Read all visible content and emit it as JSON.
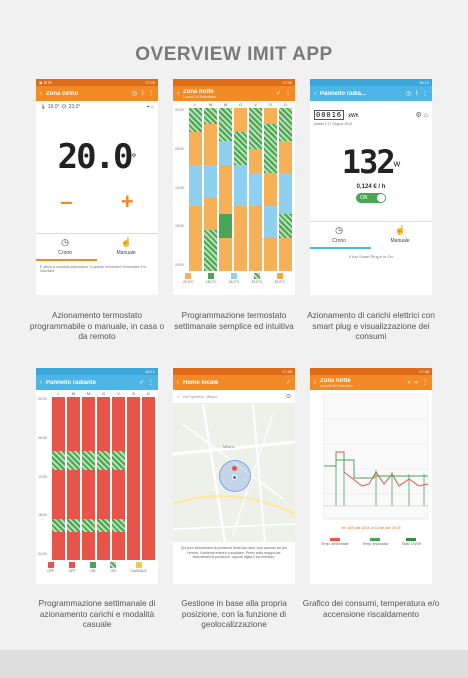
{
  "page_title": "OVERVIEW IMIT APP",
  "phones": {
    "p1": {
      "status_left": "◉ ☰ ✉",
      "status_right": "17:25",
      "title": "Zona cirino",
      "indoor_temp": "19,0°",
      "outdoor_temp": "23,0°",
      "setpoint": "20.0",
      "setpoint_unit": "°",
      "minus": "–",
      "plus": "+",
      "btn_chrono": "Crono",
      "btn_manual": "Manuale",
      "footer": "È attiva la modalità automatica. In questo momento il termostato è in Standard"
    },
    "p2": {
      "status_right": "17:35",
      "title": "Zona notte",
      "subtitle": "Lunedì 16 Settembre",
      "days": [
        "L",
        "M",
        "M",
        "G",
        "V",
        "S",
        "D"
      ],
      "y_ticks": [
        "00:00",
        "06:00",
        "12:00",
        "18:00",
        "24:00"
      ],
      "legend": [
        "20,0°C",
        "18,0°C",
        "16,0°C",
        "22,0°C",
        "20,0°C"
      ]
    },
    "p3": {
      "status_right": "16:12",
      "title": "Pannello radia...",
      "counter": "00016",
      "counter_unit": "kWh",
      "counter_since": "partito il 17 Giugno 2014",
      "power": "132",
      "power_unit": "W",
      "cost": "0,124 € / h",
      "toggle": "ON",
      "btn_chrono": "Crono",
      "btn_manual": "Manuale",
      "footer": "Il tuo Smart Plug è in On"
    },
    "p4": {
      "status_right": "16:12",
      "title": "Pannello radiante",
      "days": [
        "L",
        "M",
        "M",
        "G",
        "V",
        "S",
        "D"
      ],
      "y_ticks": [
        "00:00",
        "06:00",
        "12:00",
        "18:00",
        "24:00"
      ],
      "legend": [
        "OFF",
        "OFF",
        "ON",
        "ON",
        "CASUALE"
      ]
    },
    "p5": {
      "status_right": "17:35",
      "title": "Home locale",
      "search": "Via Spinetta, Milano",
      "map_label": "Milano",
      "footer": "Qui puoi selezionare la posizione della tua casa, così quando sei per l'errore, il sistema entrerà a scaldare. Premi sulla mappa per selezionare la posizione, oppure digita il tuo indirizzo."
    },
    "p6": {
      "status_right": "17:35",
      "title": "Zona notte",
      "subtitle": "Lunedì 16 Settembre",
      "chart_note": "Ieri 16/9 alle 18:00 al 16 set alle 20:25",
      "legend": [
        "Temp. ambientale",
        "Temp. impostata",
        "Stato On/Off"
      ]
    }
  },
  "captions": {
    "c1": "Azionamento termostato programmabile o manuale, in casa o da remoto",
    "c2": "Programmazione termostato settimanale semplice ed intuitiva",
    "c3": "Azionamento di carichi elettrici con smart plug e visualizzazione dei consumi",
    "c4": "Programmazione settimanale di azionamento carichi e modalità casuale",
    "c5": "Gestione in base alla propria posizione, con la funzione di geolocalizzazione",
    "c6": "Grafico dei consumi, temperatura e/o accensione riscaldamento"
  },
  "colors": {
    "orange": "#f28a26",
    "blue": "#4db6e6",
    "green": "#49a657",
    "red": "#e8534a",
    "yellow": "#f5c84a",
    "lightblue": "#8fd0f0"
  }
}
